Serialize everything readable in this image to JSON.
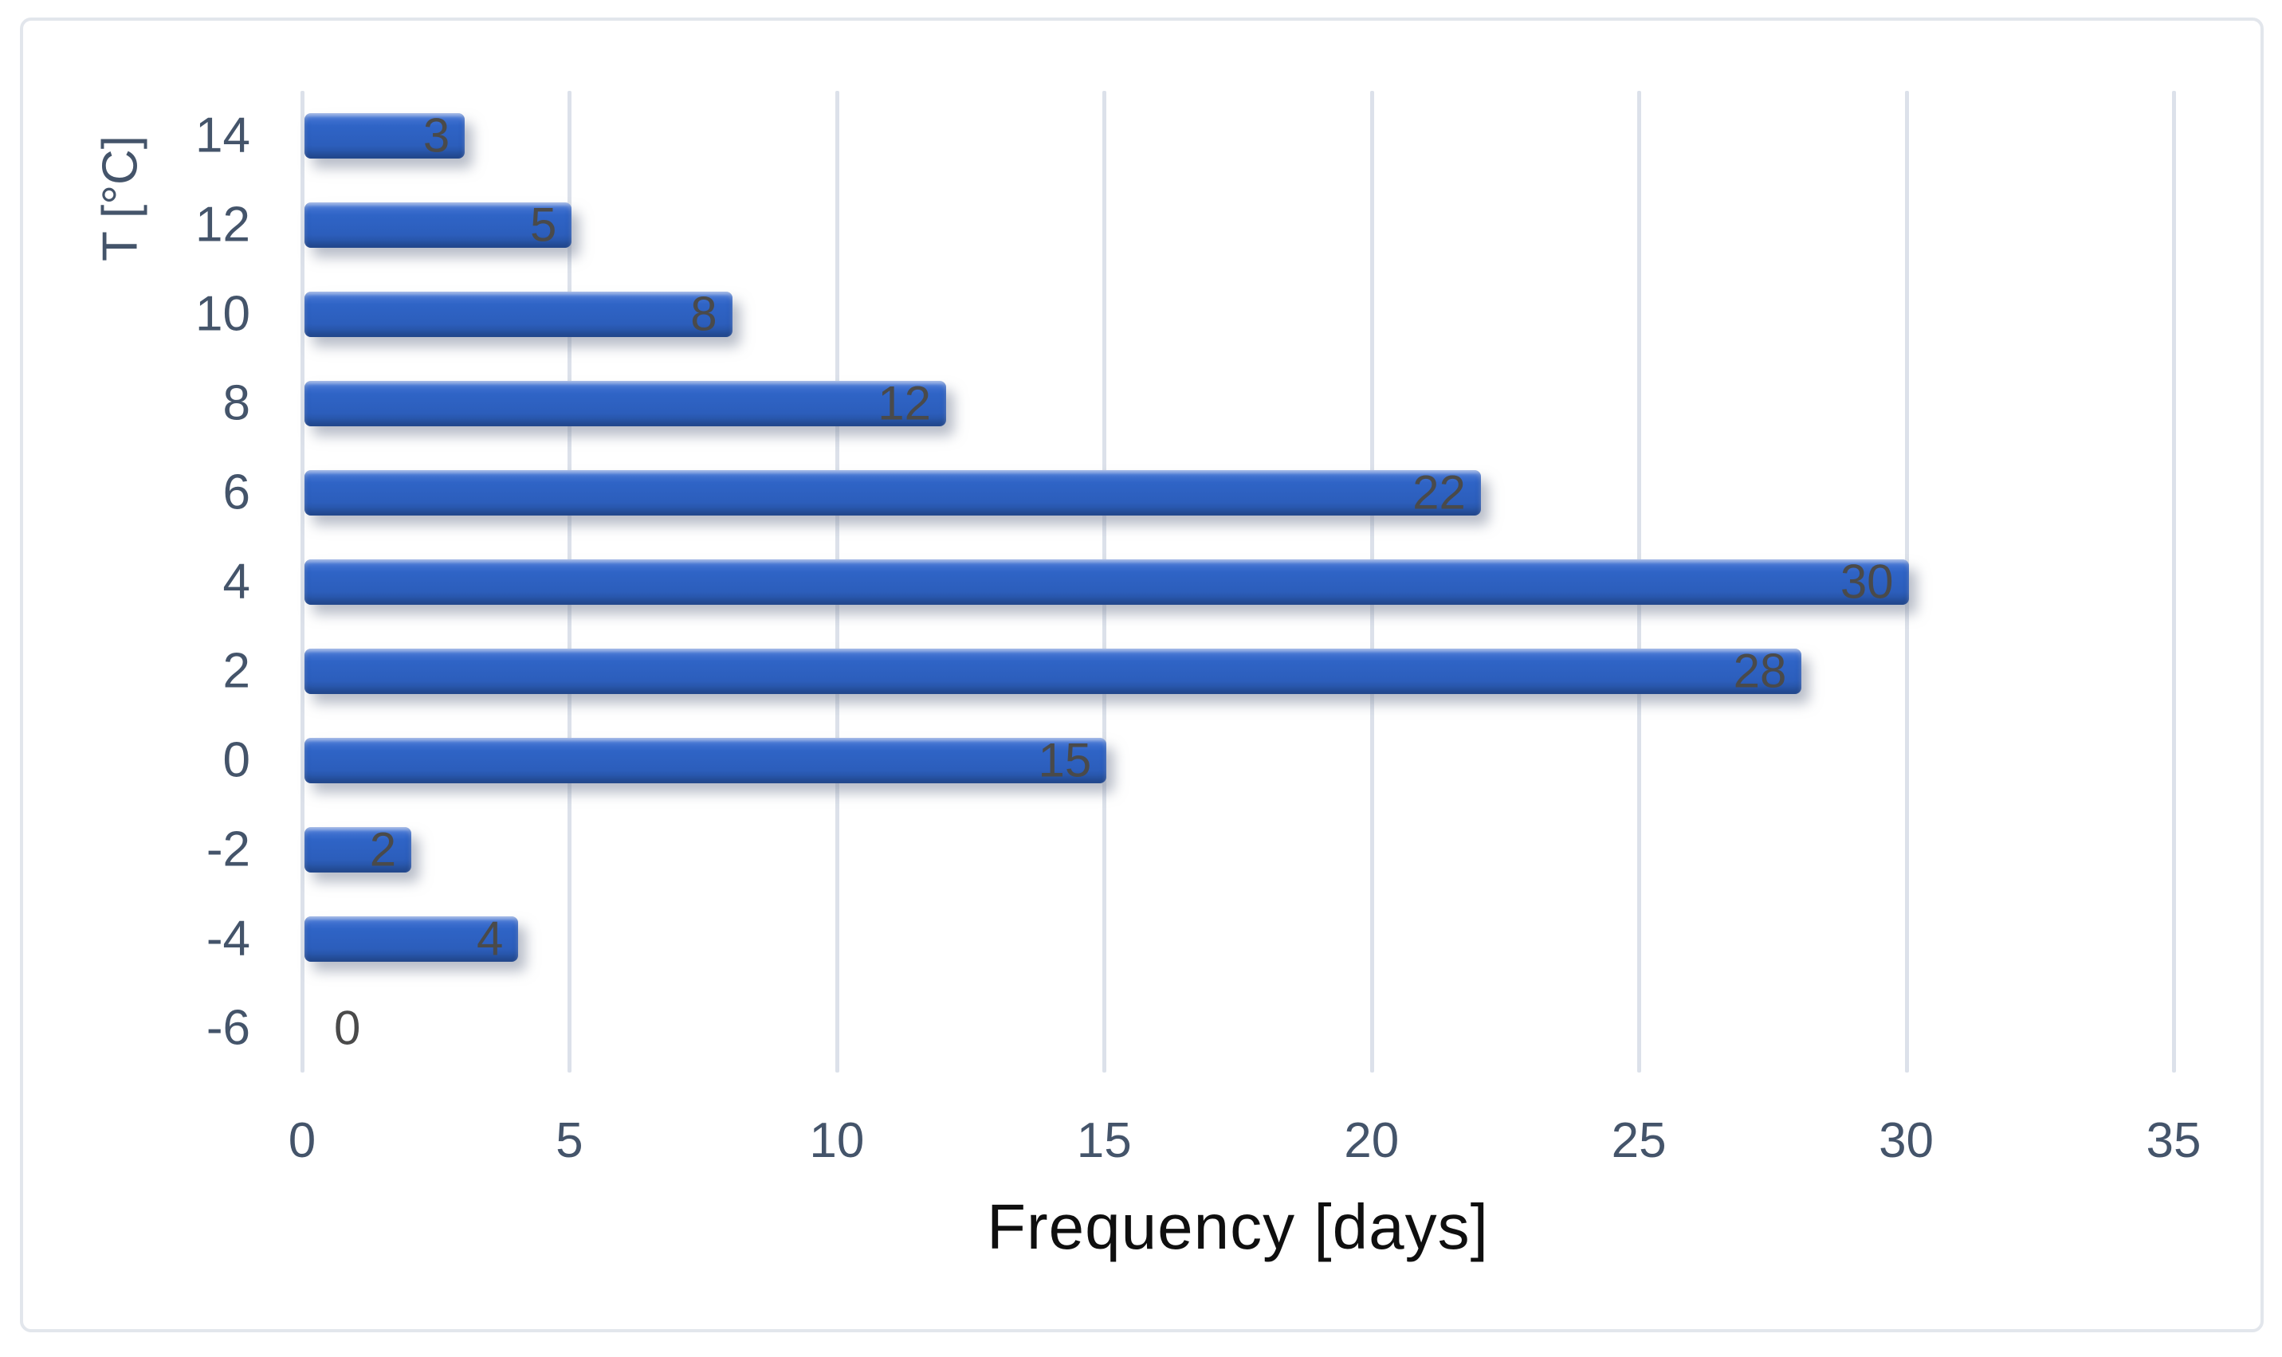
{
  "chart_data": {
    "type": "bar",
    "orientation": "horizontal",
    "title": "",
    "xlabel": "Frequency [days]",
    "ylabel": "T [°C]",
    "categories": [
      "14",
      "12",
      "10",
      "8",
      "6",
      "4",
      "2",
      "0",
      "-2",
      "-4",
      "-6"
    ],
    "values": [
      3,
      5,
      8,
      12,
      22,
      30,
      28,
      15,
      2,
      4,
      0
    ],
    "data_labels": [
      "3",
      "5",
      "8",
      "12",
      "22",
      "30",
      "28",
      "15",
      "2",
      "4",
      "0"
    ],
    "x_ticks": [
      0,
      5,
      10,
      15,
      20,
      25,
      30,
      35
    ],
    "xlim": [
      0,
      35
    ],
    "grid": "vertical-on",
    "legend": "none",
    "label_position": "inside-end"
  },
  "colors": {
    "bar_fill": "#2e62c4",
    "bar_fill_light": "#4273d2",
    "bar_fill_dark": "#27539f",
    "gridline": "#dce1ea",
    "axis_text": "#44546a",
    "data_label_text": "#4a4a4a",
    "x_axis_title_text": "#0f0f0f",
    "chart_border": "#e2e6ec",
    "background": "#ffffff"
  }
}
